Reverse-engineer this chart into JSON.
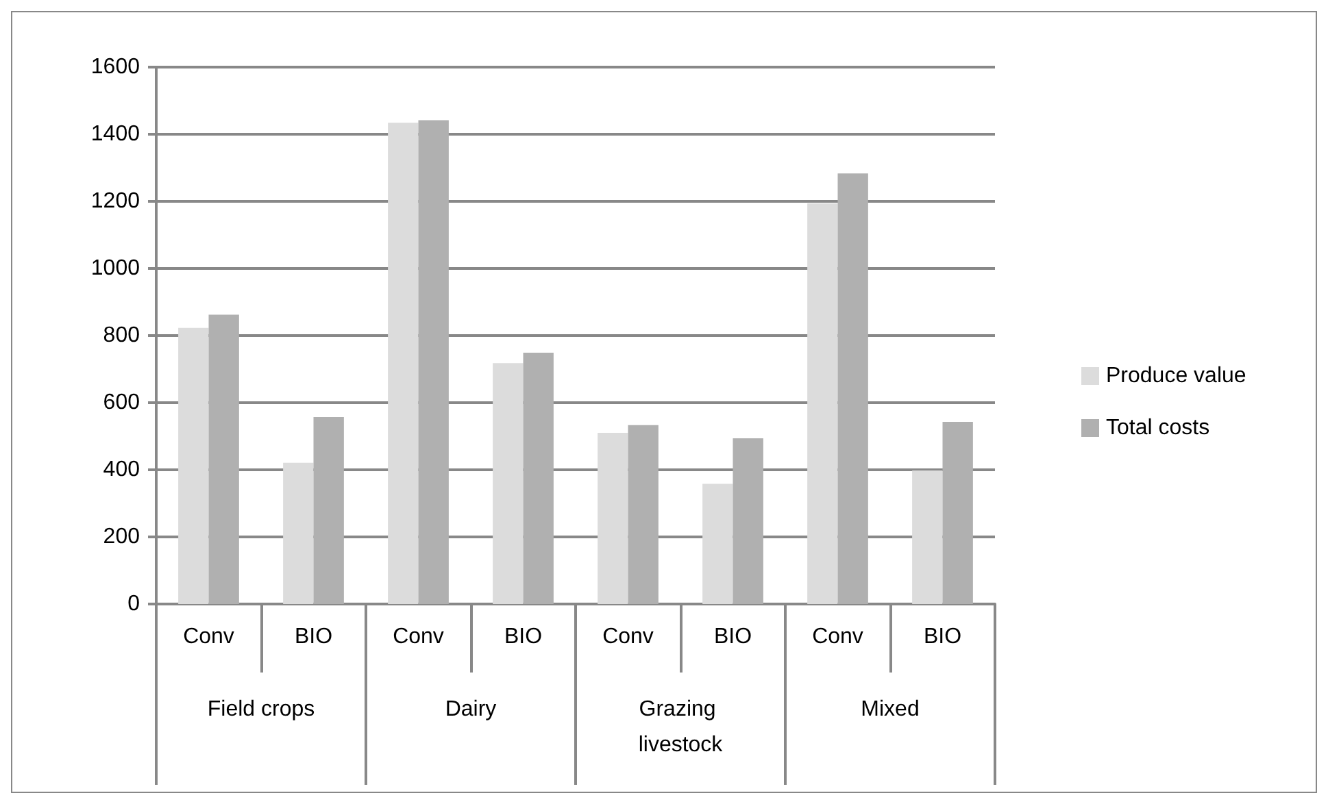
{
  "chart_data": {
    "type": "bar",
    "categories": [
      "Conv",
      "BIO",
      "Conv",
      "BIO",
      "Conv",
      "BIO",
      "Conv",
      "BIO"
    ],
    "annotations": [
      "Field crops",
      "Dairy",
      "Grazing livestock",
      "Mixed"
    ],
    "series": [
      {
        "name": "Produce value",
        "color": "#dcdcdc",
        "values": [
          823,
          421,
          1434,
          718,
          510,
          358,
          1194,
          398
        ]
      },
      {
        "name": "Total costs",
        "color": "#b0b0b0",
        "values": [
          862,
          557,
          1442,
          749,
          533,
          494,
          1283,
          543
        ]
      }
    ],
    "ylim": [
      0,
      1600
    ],
    "yticks": [
      0,
      200,
      400,
      600,
      800,
      1000,
      1200,
      1400,
      1600
    ],
    "grid": "y",
    "legend": "right"
  }
}
